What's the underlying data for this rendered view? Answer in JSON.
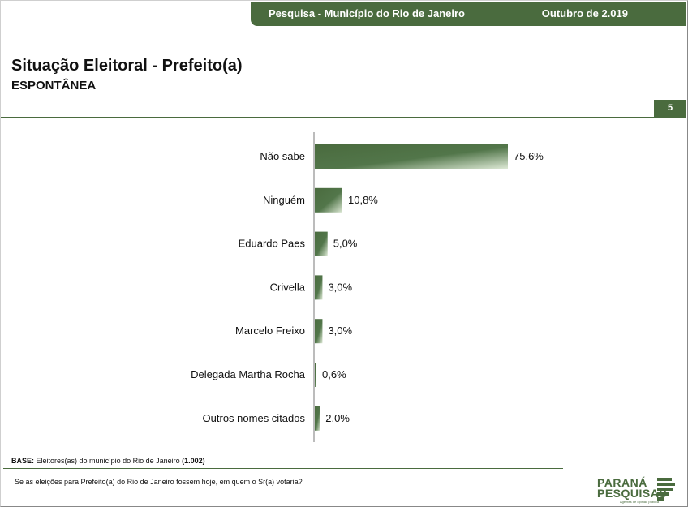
{
  "header": {
    "survey": "Pesquisa - Município do Rio de Janeiro",
    "date": "Outubro de 2.019"
  },
  "page": {
    "title": "Situação Eleitoral - Prefeito(a)",
    "subtitle": "ESPONTÂNEA",
    "number": "5"
  },
  "colors": {
    "brand_green": "#4a6b3e",
    "bar_dark": "#4a6b3e",
    "bar_light": "#dce8d4"
  },
  "chart_data": {
    "type": "bar",
    "orientation": "horizontal",
    "categories": [
      "Não sabe",
      "Ninguém",
      "Eduardo Paes",
      "Crivella",
      "Marcelo Freixo",
      "Delegada Martha Rocha",
      "Outros nomes citados"
    ],
    "values": [
      75.6,
      10.8,
      5.0,
      3.0,
      3.0,
      0.6,
      2.0
    ],
    "value_labels": [
      "75,6%",
      "10,8%",
      "5,0%",
      "3,0%",
      "3,0%",
      "0,6%",
      "2,0%"
    ],
    "unit": "%",
    "xlim": [
      0,
      100
    ],
    "grid": false,
    "legend": "none"
  },
  "footer": {
    "base_label": "BASE:",
    "base_text": "Eleitores(as) do município do Rio de Janeiro",
    "base_count": "(1.002)",
    "question": "Se as eleições para Prefeito(a) do Rio de Janeiro fossem hoje, em quem o Sr(a) votaria?"
  },
  "logo": {
    "line1": "PARANÁ",
    "line2": "PESQUISAS",
    "tagline": "Agentes de opinião pública"
  }
}
